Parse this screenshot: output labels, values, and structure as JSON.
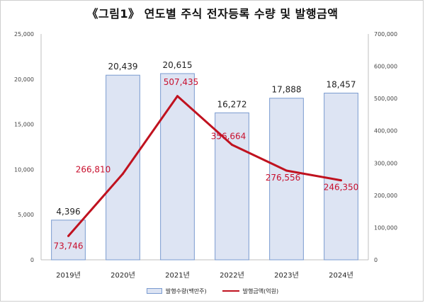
{
  "title": "《그림1》 연도별 주식 전자등록 수량 및 발행금액",
  "chart_data": {
    "type": "bar",
    "categories": [
      "2019년",
      "2020년",
      "2021년",
      "2022년",
      "2023년",
      "2024년"
    ],
    "series": [
      {
        "name": "발행수량(백만주)",
        "type": "bar",
        "axis": "left",
        "values": [
          4396,
          20439,
          20615,
          16272,
          17888,
          18457
        ],
        "labels": [
          "4,396",
          "20,439",
          "20,615",
          "16,272",
          "17,888",
          "18,457"
        ],
        "color": "#dde4f3",
        "stroke": "#7a9bd0"
      },
      {
        "name": "발행금액(억원)",
        "type": "line",
        "axis": "right",
        "values": [
          73746,
          266810,
          507435,
          356664,
          276556,
          246350
        ],
        "labels": [
          "73,746",
          "266,810",
          "507,435",
          "356,664",
          "276,556",
          "246,350"
        ],
        "color": "#c0121f"
      }
    ],
    "y_left": {
      "ylim": [
        0,
        25000
      ],
      "ticks": [
        0,
        5000,
        10000,
        15000,
        20000,
        25000
      ],
      "tick_labels": [
        "0",
        "5,000",
        "10,000",
        "15,000",
        "20,000",
        "25,000"
      ]
    },
    "y_right": {
      "ylim": [
        0,
        700000
      ],
      "ticks": [
        0,
        100000,
        200000,
        300000,
        400000,
        500000,
        600000,
        700000
      ],
      "tick_labels": [
        "0",
        "100,000",
        "200,000",
        "300,000",
        "400,000",
        "500,000",
        "600,000",
        "700,000"
      ]
    },
    "grid": false,
    "legend": "bottom"
  }
}
